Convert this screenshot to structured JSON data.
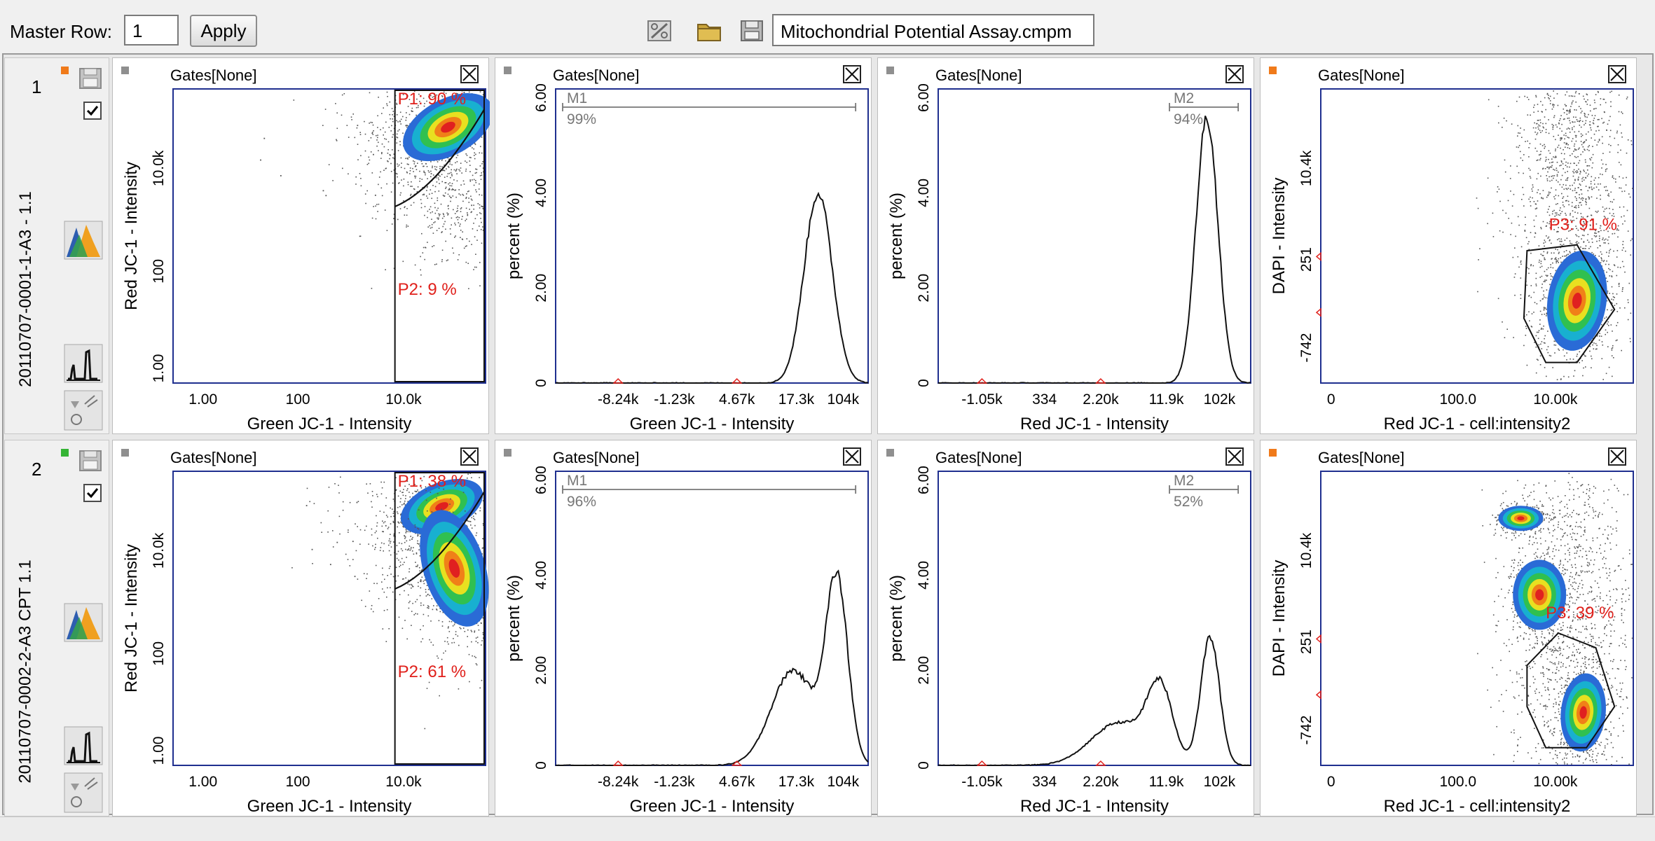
{
  "toolbar": {
    "master_row_label": "Master Row:",
    "master_row_value": "1",
    "apply_label": "Apply",
    "filename": "Mitochondrial Potential Assay.cmpm",
    "icons": [
      "settings-icon",
      "open-folder-icon",
      "save-icon"
    ]
  },
  "colors": {
    "gate_label_red": "#e0201b",
    "plot_border": "#1f2f8f",
    "flag_orange": "#f07a1a",
    "flag_gray": "#8f8f8f",
    "flag_green": "#35b435"
  },
  "rows": [
    {
      "number": "1",
      "name": "20110707-0001-1-A3 - 1.1",
      "flag_color": "#f07a1a",
      "checked": true,
      "panels": [
        {
          "type": "scatter",
          "gates": "Gates[None]",
          "flag_color": "#8f8f8f",
          "xlabel": "Green JC-1 - Intensity",
          "ylabel": "Red JC-1 - Intensity",
          "xticks": [
            "1.00",
            "100",
            "10.0k"
          ],
          "yticks": [
            "1.00",
            "100",
            "10.0k"
          ],
          "gate_labels": [
            "P1: 90 %",
            "P2: 9 %"
          ]
        },
        {
          "type": "histogram",
          "gates": "Gates[None]",
          "flag_color": "#8f8f8f",
          "xlabel": "Green JC-1 - Intensity",
          "ylabel": "percent (%)",
          "xticks": [
            "-8.24k",
            "-1.23k",
            "4.67k",
            "17.3k",
            "104k"
          ],
          "yticks": [
            "0",
            "2.00",
            "4.00",
            "6.00"
          ],
          "marker_name": "M1",
          "marker_percent": "99%"
        },
        {
          "type": "histogram",
          "gates": "Gates[None]",
          "flag_color": "#8f8f8f",
          "xlabel": "Red JC-1 - Intensity",
          "ylabel": "percent (%)",
          "xticks": [
            "-1.05k",
            "334",
            "2.20k",
            "11.9k",
            "102k"
          ],
          "yticks": [
            "0",
            "2.00",
            "4.00",
            "6.00"
          ],
          "marker_name": "M2",
          "marker_percent": "94%"
        },
        {
          "type": "scatter",
          "gates": "Gates[None]",
          "flag_color": "#f07a1a",
          "xlabel": "Red JC-1 - cell:intensity2",
          "ylabel": "DAPI - Intensity",
          "xticks": [
            "0",
            "100.0",
            "10.00k"
          ],
          "yticks": [
            "-742",
            "251",
            "10.4k"
          ],
          "gate_labels": [
            "P3: 91 %"
          ]
        }
      ]
    },
    {
      "number": "2",
      "name": "20110707-0002-2-A3 CPT 1.1",
      "flag_color": "#35b435",
      "checked": true,
      "panels": [
        {
          "type": "scatter",
          "gates": "Gates[None]",
          "flag_color": "#8f8f8f",
          "xlabel": "Green JC-1 - Intensity",
          "ylabel": "Red JC-1 - Intensity",
          "xticks": [
            "1.00",
            "100",
            "10.0k"
          ],
          "yticks": [
            "1.00",
            "100",
            "10.0k"
          ],
          "gate_labels": [
            "P1: 38 %",
            "P2: 61 %"
          ]
        },
        {
          "type": "histogram",
          "gates": "Gates[None]",
          "flag_color": "#8f8f8f",
          "xlabel": "Green JC-1 - Intensity",
          "ylabel": "percent (%)",
          "xticks": [
            "-8.24k",
            "-1.23k",
            "4.67k",
            "17.3k",
            "104k"
          ],
          "yticks": [
            "0",
            "2.00",
            "4.00",
            "6.00"
          ],
          "marker_name": "M1",
          "marker_percent": "96%"
        },
        {
          "type": "histogram",
          "gates": "Gates[None]",
          "flag_color": "#8f8f8f",
          "xlabel": "Red JC-1 - Intensity",
          "ylabel": "percent (%)",
          "xticks": [
            "-1.05k",
            "334",
            "2.20k",
            "11.9k",
            "102k"
          ],
          "yticks": [
            "0",
            "2.00",
            "4.00",
            "6.00"
          ],
          "marker_name": "M2",
          "marker_percent": "52%"
        },
        {
          "type": "scatter",
          "gates": "Gates[None]",
          "flag_color": "#f07a1a",
          "xlabel": "Red JC-1 - cell:intensity2",
          "ylabel": "DAPI - Intensity",
          "xticks": [
            "0",
            "100.0",
            "10.00k"
          ],
          "yticks": [
            "-742",
            "251",
            "10.4k"
          ],
          "gate_labels": [
            "P3: 39 %"
          ]
        }
      ]
    }
  ]
}
